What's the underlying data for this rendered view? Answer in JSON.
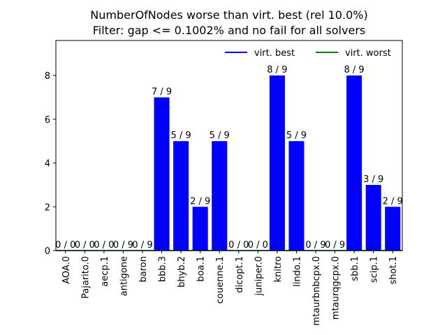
{
  "chart_data": {
    "type": "bar",
    "title": "NumberOfNodes worse than virt. best (rel 10.0%)",
    "subtitle": "Filter: gap <= 0.1002% and no fail for all solvers",
    "xlabel": "",
    "ylabel": "",
    "ylim": [
      0,
      9.6
    ],
    "yticks": [
      0,
      2,
      4,
      6,
      8
    ],
    "grid": false,
    "legend_position": "top-right",
    "bar_color": "#0000ff",
    "categories": [
      "AOA.0",
      "Pajarito.0",
      "aecp.1",
      "antigone",
      "baron",
      "bbb.3",
      "bhyb.2",
      "boa.1",
      "couenne.1",
      "dicopt.1",
      "juniper.0",
      "knitro",
      "lindo.1",
      "mtaurbnbcpx.0",
      "mtaurqgcpx.0",
      "sbb.1",
      "scip.1",
      "shot.1"
    ],
    "values": [
      0,
      0,
      0,
      0,
      0,
      7,
      5,
      2,
      5,
      0,
      0,
      8,
      5,
      0,
      0,
      8,
      3,
      2
    ],
    "bar_labels": [
      "0 / 0",
      "0 / 0",
      "0 / 0",
      "0 / 9",
      "0 / 9",
      "7 / 9",
      "5 / 9",
      "2 / 9",
      "5 / 9",
      "0 / 0",
      "0 / 0",
      "8 / 9",
      "5 / 9",
      "0 / 9",
      "0 / 9",
      "8 / 9",
      "3 / 9",
      "2 / 9"
    ],
    "series": [
      {
        "name": "virt. best",
        "color": "#0000ff",
        "values": [
          0,
          0,
          0,
          0,
          0,
          0,
          0,
          0,
          0,
          0,
          0,
          0,
          0,
          0,
          0,
          0,
          0,
          0
        ]
      },
      {
        "name": "virt. worst",
        "color": "#008000",
        "values": [
          0,
          0,
          0,
          0,
          0,
          0,
          0,
          0,
          0,
          0,
          0,
          0,
          0,
          0,
          0,
          0,
          0,
          0
        ]
      }
    ]
  }
}
